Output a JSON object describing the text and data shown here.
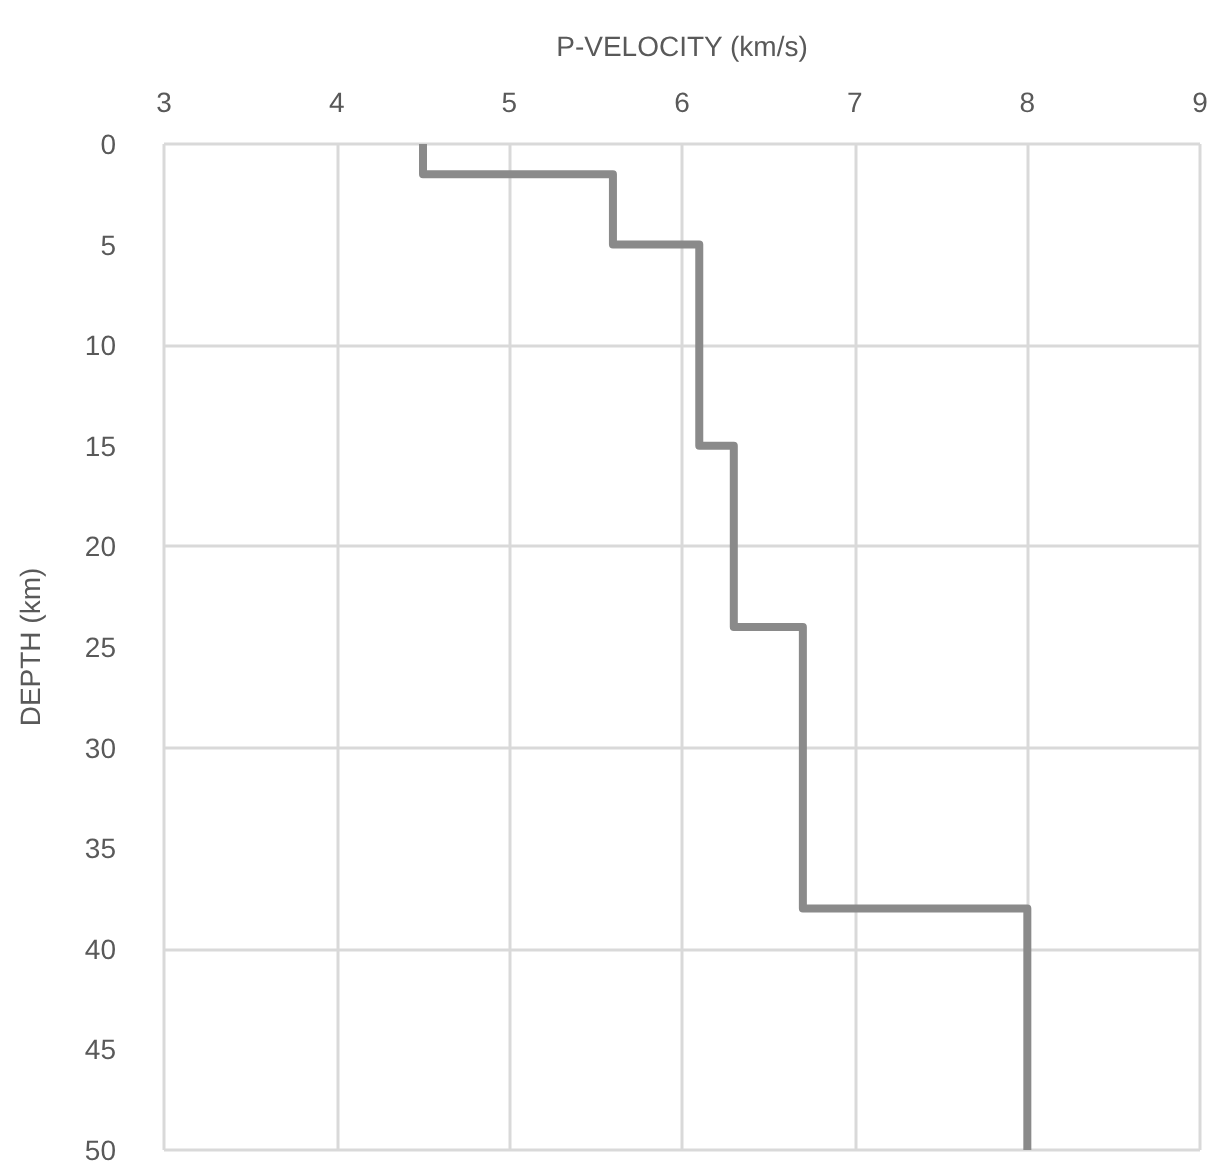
{
  "chart_data": {
    "type": "line",
    "xlabel": "P-VELOCITY (km/s)",
    "ylabel": "DEPTH (km)",
    "x": [
      4.5,
      4.5,
      5.6,
      5.6,
      6.1,
      6.1,
      6.3,
      6.3,
      6.7,
      6.7,
      8,
      8
    ],
    "series": [
      {
        "color": "#8a8a8a",
        "values": [
          0,
          1.5,
          1.5,
          5,
          5,
          15,
          15,
          24,
          24,
          38,
          38,
          50
        ]
      }
    ],
    "xlim": [
      3,
      9
    ],
    "xticks": [
      3,
      4,
      5,
      6,
      7,
      8,
      9
    ],
    "ylim": [
      50,
      0
    ],
    "yticks": [
      0,
      5,
      10,
      15,
      20,
      25,
      30,
      35,
      40,
      45,
      50
    ],
    "grid": true,
    "marker": "none",
    "line_style": "solid"
  }
}
